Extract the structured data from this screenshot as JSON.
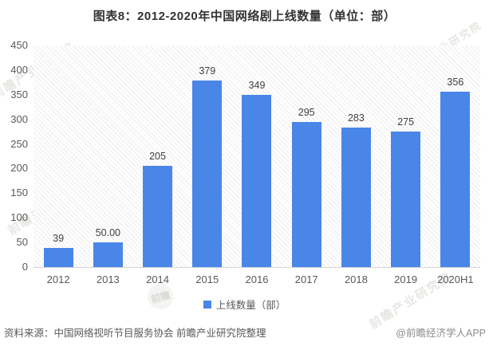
{
  "title": "图表8：2012-2020年中国网络剧上线数量（单位：部）",
  "chart_data": {
    "type": "bar",
    "title": "图表8：2012-2020年中国网络剧上线数量（单位：部）",
    "categories": [
      "2012",
      "2013",
      "2014",
      "2015",
      "2016",
      "2017",
      "2018",
      "2019",
      "2020H1"
    ],
    "values": [
      39,
      50,
      205,
      379,
      349,
      295,
      283,
      275,
      356
    ],
    "value_labels": [
      "39",
      "50.00",
      "205",
      "379",
      "349",
      "295",
      "283",
      "275",
      "356"
    ],
    "series_name": "上线数量（部）",
    "xlabel": "",
    "ylabel": "",
    "ylim": [
      0,
      450
    ],
    "y_ticks": [
      450,
      400,
      350,
      300,
      250,
      200,
      150,
      100,
      50,
      0
    ],
    "grid": false,
    "legend_position": "bottom-center",
    "plot_background": "diagonal-hatch",
    "bar_color": "#4A86E8"
  },
  "legend": {
    "label": "上线数量（部）",
    "marker_color": "#4A86E8"
  },
  "footer": {
    "source": "资料来源：中国网络视听节目服务协会 前瞻产业研究院整理",
    "credit": "@前瞻经济学人APP"
  },
  "watermark": {
    "text": "前瞻产业研究院",
    "logo_text": "前瞻"
  },
  "colors": {
    "bar": "#4A86E8",
    "title_text": "#333333",
    "axis_text": "#595959",
    "value_label_text": "#404040",
    "footer_text": "#595959",
    "axis_line": "#d6d6d6"
  }
}
